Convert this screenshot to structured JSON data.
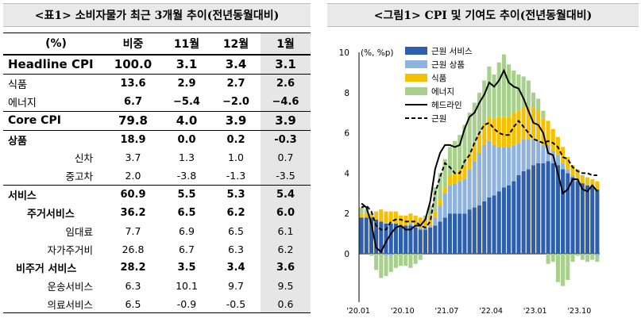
{
  "table": {
    "title": "<표1> 소비자물가 최근 3개월 추이(전년동월대비)",
    "headers": [
      "(%)",
      "비중",
      "11월",
      "12월",
      "1월"
    ],
    "rows": [
      {
        "label": "Headline CPI",
        "values": [
          "100.0",
          "3.1",
          "3.4",
          "3.1"
        ]
      },
      {
        "label": "식품",
        "values": [
          "13.6",
          "2.9",
          "2.7",
          "2.6"
        ]
      },
      {
        "label": "에너지",
        "values": [
          "6.7",
          "−5.4",
          "−2.0",
          "−4.6"
        ]
      },
      {
        "label": "Core CPI",
        "values": [
          "79.8",
          "4.0",
          "3.9",
          "3.9"
        ]
      },
      {
        "label": "상품",
        "values": [
          "18.9",
          "0.0",
          "0.2",
          "-0.3"
        ]
      },
      {
        "label": "신차",
        "values": [
          "3.7",
          "1.3",
          "1.0",
          "0.7"
        ]
      },
      {
        "label": "중고차",
        "values": [
          "2.0",
          "-3.8",
          "-1.3",
          "-3.5"
        ]
      },
      {
        "label": "서비스",
        "values": [
          "60.9",
          "5.5",
          "5.3",
          "5.4"
        ]
      },
      {
        "label": "주거서비스",
        "values": [
          "36.2",
          "6.5",
          "6.2",
          "6.0"
        ]
      },
      {
        "label": "임대료",
        "values": [
          "7.7",
          "6.9",
          "6.5",
          "6.1"
        ]
      },
      {
        "label": "자가주거비",
        "values": [
          "26.8",
          "6.7",
          "6.3",
          "6.2"
        ]
      },
      {
        "label": "비주거 서비스",
        "values": [
          "28.2",
          "3.5",
          "3.4",
          "3.6"
        ]
      },
      {
        "label": "운송서비스",
        "values": [
          "6.3",
          "10.1",
          "9.7",
          "9.5"
        ]
      },
      {
        "label": "의료서비스",
        "values": [
          "6.5",
          "-0.9",
          "-0.5",
          "0.6"
        ]
      }
    ]
  },
  "chart_data": {
    "type": "bar",
    "title": "<그림1> CPI 및 기여도 추이(전년동월대비)",
    "ylabel": "(%, %p)",
    "ylim": [
      -2.4,
      10
    ],
    "yticks": [
      0,
      2,
      4,
      6,
      8,
      10
    ],
    "x_start": "2020-01",
    "x_end": "2024-01",
    "tick_labels": [
      "'20.01",
      "'20.10",
      "'21.07",
      "'22.04",
      "'23.01",
      "'23.10"
    ],
    "tick_indices": [
      0,
      9,
      18,
      27,
      36,
      45
    ],
    "legend_position": "top-left",
    "colors": {
      "core_services": "#2e5fad",
      "core_goods": "#8fb3dd",
      "food": "#f5c000",
      "energy": "#a8d08d",
      "headline": "#000000",
      "core": "#000000"
    },
    "series": [
      {
        "name": "근원 서비스",
        "key": "core_services",
        "kind": "bar",
        "values": [
          1.8,
          1.8,
          1.8,
          1.7,
          1.6,
          1.5,
          1.5,
          1.5,
          1.4,
          1.4,
          1.4,
          1.3,
          1.2,
          1.2,
          1.3,
          1.4,
          1.6,
          1.8,
          2.0,
          2.0,
          2.0,
          2.0,
          2.2,
          2.3,
          2.4,
          2.6,
          2.8,
          2.9,
          3.1,
          3.3,
          3.4,
          3.6,
          3.9,
          4.1,
          4.2,
          4.4,
          4.5,
          4.5,
          4.6,
          4.5,
          4.4,
          4.2,
          4.0,
          3.8,
          3.6,
          3.5,
          3.4,
          3.3,
          3.2
        ]
      },
      {
        "name": "근원 상품",
        "key": "core_goods",
        "kind": "bar",
        "values": [
          0.0,
          0.0,
          0.0,
          0.0,
          0.0,
          -0.1,
          -0.1,
          0.0,
          0.0,
          0.0,
          0.1,
          0.1,
          0.1,
          0.1,
          0.1,
          0.4,
          0.8,
          1.2,
          1.4,
          1.5,
          1.6,
          1.7,
          2.0,
          2.3,
          2.6,
          2.8,
          2.8,
          2.5,
          2.2,
          2.0,
          1.9,
          1.8,
          1.6,
          1.6,
          1.5,
          1.3,
          1.1,
          0.9,
          0.8,
          0.6,
          0.5,
          0.3,
          0.2,
          0.1,
          0.1,
          0.0,
          0.0,
          0.0,
          -0.1
        ]
      },
      {
        "name": "식품",
        "key": "food",
        "kind": "bar",
        "values": [
          0.2,
          0.2,
          0.2,
          0.4,
          0.6,
          0.6,
          0.6,
          0.6,
          0.5,
          0.5,
          0.5,
          0.5,
          0.5,
          0.5,
          0.5,
          0.3,
          0.3,
          0.3,
          0.5,
          0.5,
          0.6,
          0.7,
          0.8,
          0.9,
          1.0,
          1.1,
          1.2,
          1.3,
          1.5,
          1.5,
          1.5,
          1.6,
          1.6,
          1.6,
          1.6,
          1.6,
          1.5,
          1.3,
          1.2,
          1.1,
          0.9,
          0.8,
          0.6,
          0.5,
          0.5,
          0.4,
          0.4,
          0.4,
          0.4
        ]
      },
      {
        "name": "에너지",
        "key": "energy",
        "kind": "bar",
        "values": [
          0.3,
          0.2,
          -0.1,
          -0.8,
          -1.2,
          -1.0,
          -0.8,
          -0.7,
          -0.6,
          -0.6,
          -0.7,
          -0.5,
          -0.3,
          0.1,
          0.5,
          1.2,
          1.3,
          1.4,
          1.4,
          1.6,
          1.7,
          2.0,
          2.0,
          2.0,
          2.0,
          2.1,
          2.5,
          2.2,
          2.7,
          3.1,
          2.6,
          2.1,
          1.8,
          1.5,
          1.3,
          0.7,
          0.6,
          0.4,
          -0.5,
          -0.4,
          -1.4,
          -1.6,
          -1.3,
          -0.4,
          -0.1,
          -0.3,
          -0.4,
          -0.3,
          -0.3
        ]
      },
      {
        "name": "헤드라인",
        "key": "headline",
        "kind": "line",
        "values": [
          2.5,
          2.3,
          1.5,
          0.3,
          0.1,
          0.6,
          1.0,
          1.3,
          1.4,
          1.2,
          1.2,
          1.4,
          1.4,
          1.7,
          2.6,
          4.2,
          5.0,
          5.4,
          5.4,
          5.3,
          5.4,
          6.2,
          6.8,
          7.0,
          7.5,
          7.9,
          8.5,
          8.3,
          8.6,
          9.1,
          8.5,
          8.3,
          8.2,
          7.7,
          7.1,
          6.5,
          6.4,
          6.0,
          5.0,
          4.9,
          4.0,
          3.0,
          3.2,
          3.7,
          3.7,
          3.2,
          3.1,
          3.4,
          3.1
        ]
      },
      {
        "name": "근원",
        "key": "core",
        "kind": "line",
        "values": [
          2.3,
          2.4,
          2.1,
          1.4,
          1.2,
          1.2,
          1.6,
          1.7,
          1.7,
          1.6,
          1.6,
          1.6,
          1.4,
          1.3,
          1.6,
          3.0,
          3.8,
          4.5,
          4.3,
          4.0,
          4.0,
          4.6,
          4.9,
          5.5,
          6.0,
          6.4,
          6.5,
          6.2,
          6.0,
          5.9,
          5.9,
          6.3,
          6.6,
          6.3,
          6.0,
          5.7,
          5.6,
          5.5,
          5.6,
          5.5,
          5.3,
          4.8,
          4.7,
          4.3,
          4.1,
          4.0,
          4.0,
          3.9,
          3.9
        ]
      }
    ]
  }
}
